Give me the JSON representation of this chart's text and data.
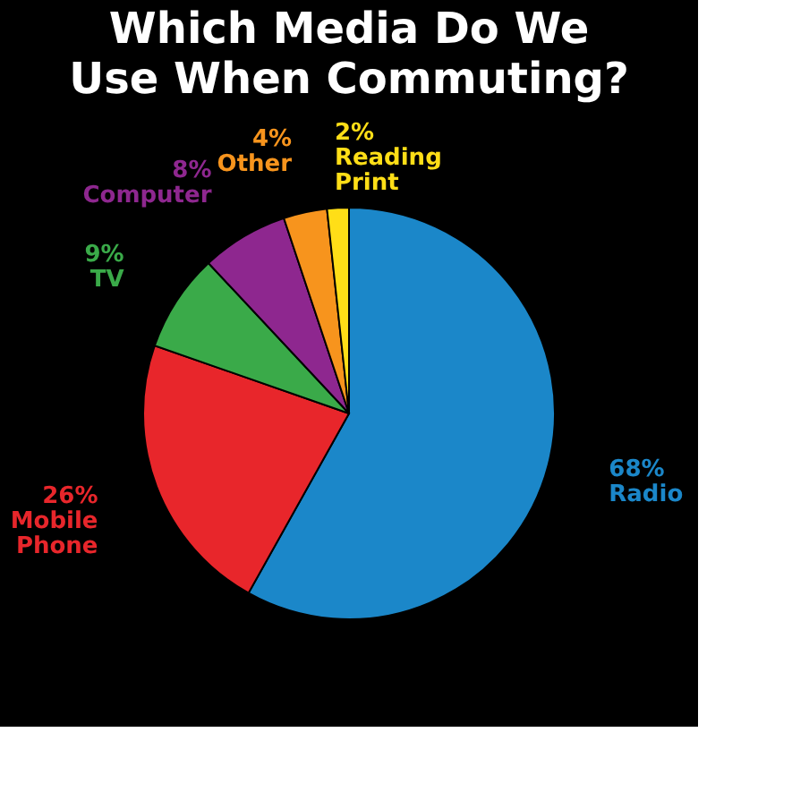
{
  "chart_data": {
    "type": "pie",
    "title": "Which Media Do We Use When Commuting?",
    "categories": [
      "Radio",
      "Mobile Phone",
      "TV",
      "Computer",
      "Other",
      "Reading Print"
    ],
    "values": [
      68,
      26,
      9,
      8,
      4,
      2
    ],
    "value_labels": [
      "68%",
      "26%",
      "9%",
      "8%",
      "4%",
      "2%"
    ],
    "colors": [
      "#1b87c9",
      "#e8262b",
      "#3aaa49",
      "#8e278f",
      "#f7941d",
      "#ffde17"
    ],
    "legend": false
  }
}
